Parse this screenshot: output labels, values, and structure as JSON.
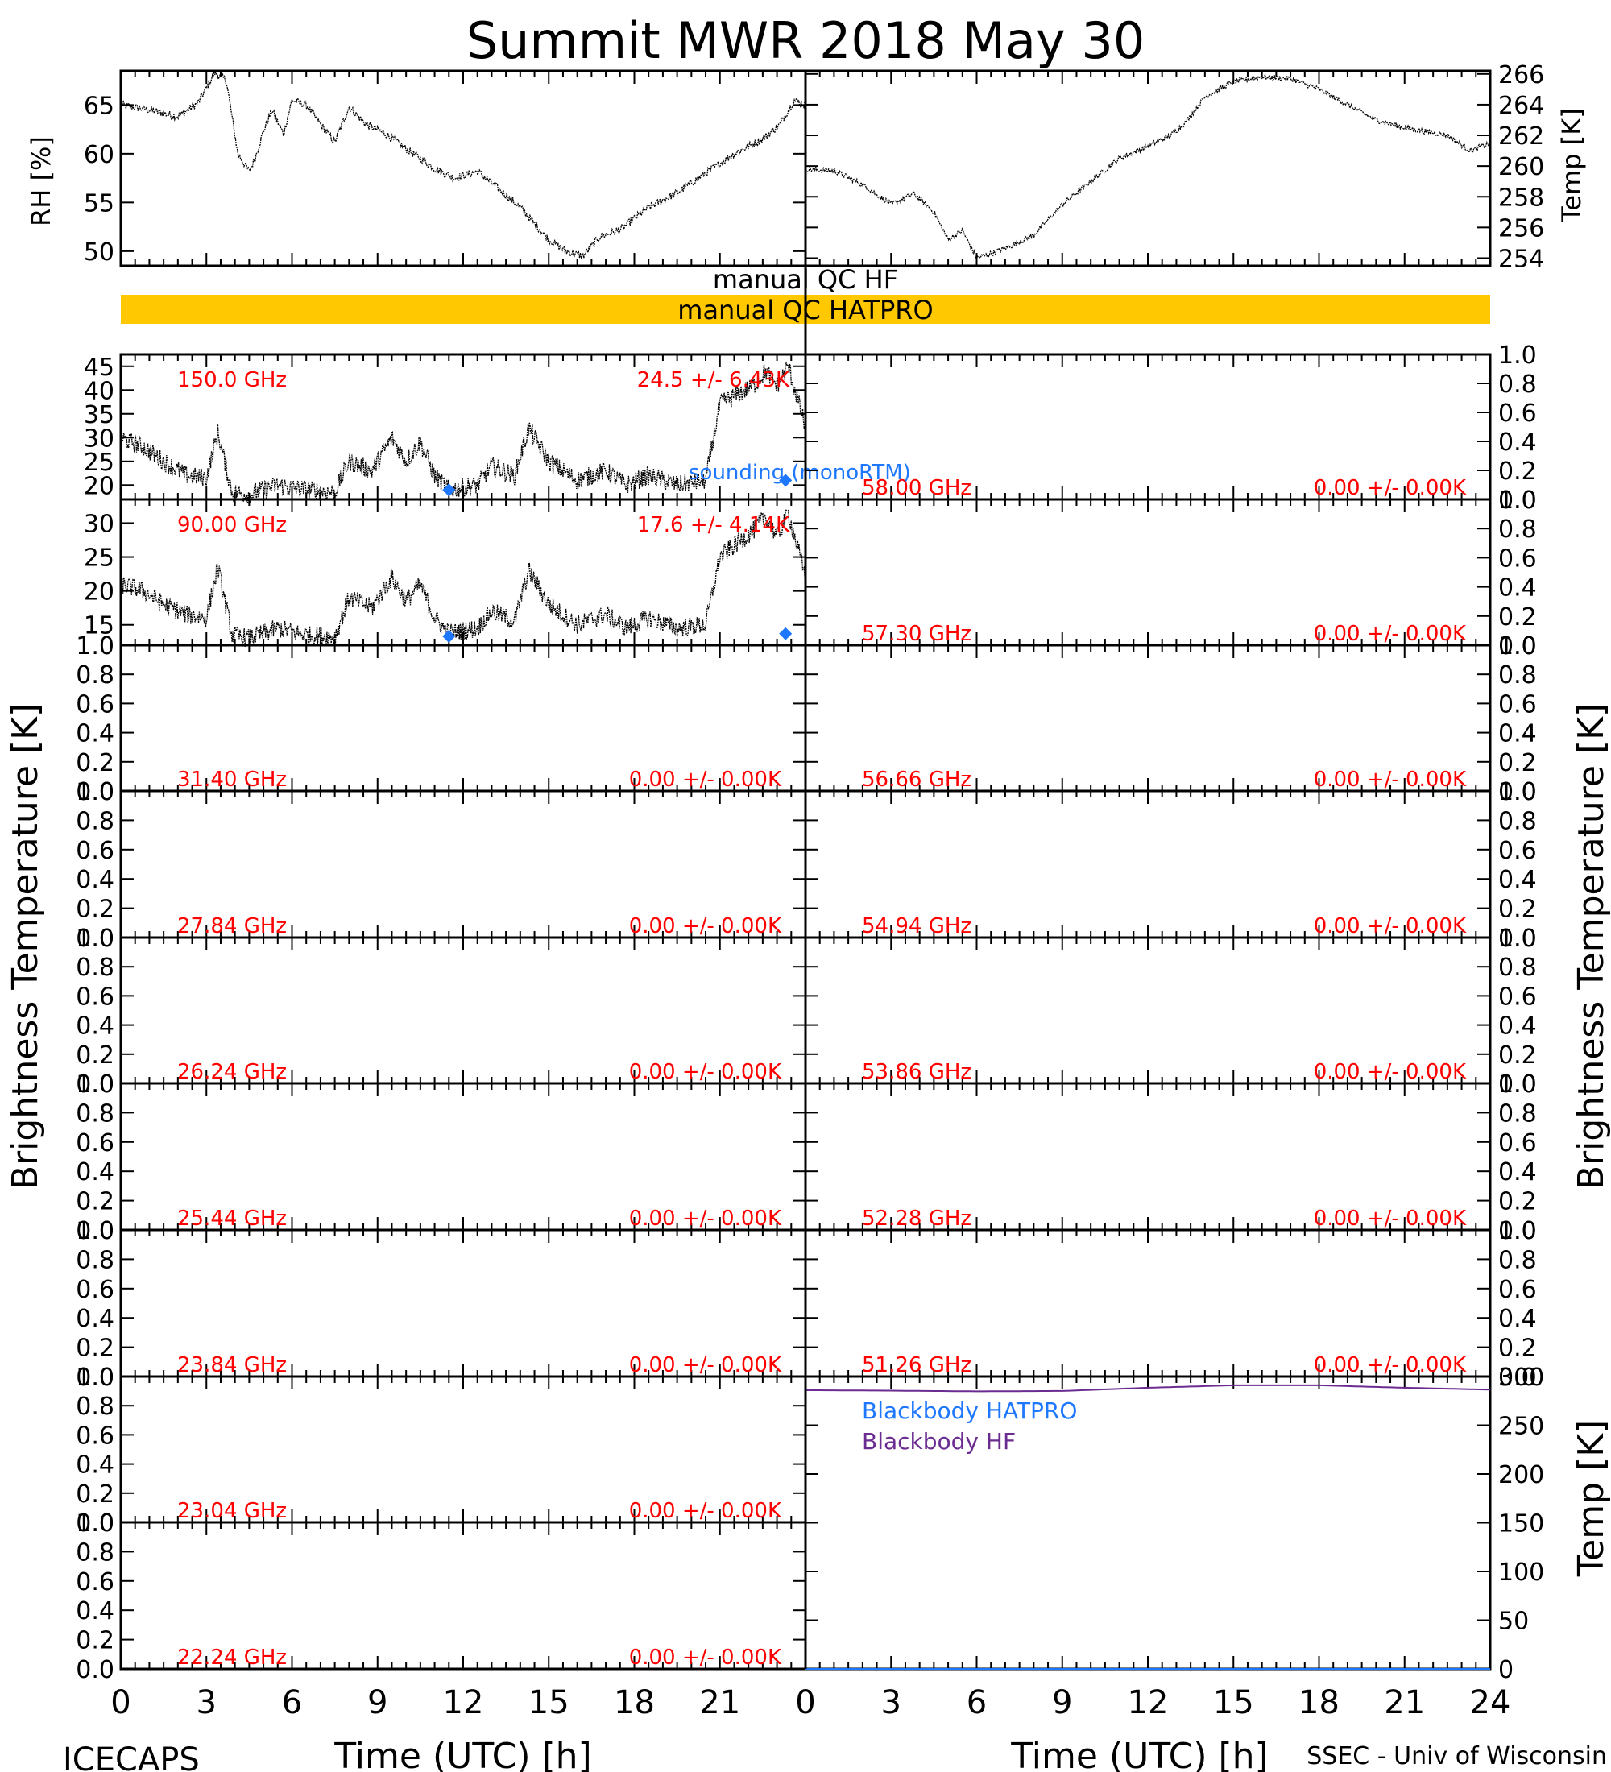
{
  "title": "Summit MWR 2018 May 30",
  "footer": {
    "left": "ICECAPS",
    "right": "SSEC - Univ of Wisconsin"
  },
  "xaxis": {
    "label": "Time (UTC) [h]",
    "ticks": [
      "0",
      "3",
      "6",
      "9",
      "12",
      "15",
      "18",
      "21",
      "24"
    ],
    "left_ticks": [
      "0",
      "3",
      "6",
      "9",
      "12",
      "15",
      "18",
      "21"
    ]
  },
  "ylabels": {
    "rh": "RH [%]",
    "temp_top": "Temp [K]",
    "tb_left": "Brightness Temperature [K]",
    "tb_right": "Brightness Temperature [K]",
    "temp_bb": "Temp [K]"
  },
  "qc": {
    "hf_label": "manual QC HF",
    "hatpro_label": "manual QC HATPRO",
    "hatpro_color": "#FFC800"
  },
  "colors": {
    "annotation": "#FF0000",
    "sounding": "#1E78FF",
    "blackbody_hf": "#6B2C91",
    "trace": "#000000"
  },
  "legend": {
    "sounding": "sounding (monoRTM)",
    "bb_hatpro": "Blackbody HATPRO",
    "bb_hf": "Blackbody HF"
  },
  "chart_data": [
    {
      "type": "line",
      "name": "rh",
      "ylim": [
        48.5,
        68.5
      ],
      "yticks": [
        "50",
        "55",
        "60",
        "65"
      ],
      "xlim": [
        0,
        24
      ],
      "series": [
        {
          "x": [
            0,
            1,
            2,
            2.7,
            3.3,
            3.7,
            4.1,
            4.5,
            4.7,
            5.0,
            5.3,
            5.7,
            6.0,
            6.5,
            7.0,
            7.5,
            8.0,
            8.6,
            9.3,
            10.0,
            11.0,
            11.7,
            12.5,
            13.0,
            14.0,
            15.0,
            15.6,
            16.2,
            16.8,
            17.5,
            18.5,
            19.5,
            20.5,
            21.5,
            22.5,
            23.1,
            23.6,
            24.0
          ],
          "y": [
            65.0,
            64.5,
            63.8,
            65.2,
            68.3,
            67.5,
            60.0,
            58.2,
            59.5,
            62.3,
            64.5,
            62.0,
            65.5,
            65.0,
            63.0,
            61.2,
            64.8,
            63.0,
            62.0,
            60.5,
            58.5,
            57.5,
            58.2,
            57.0,
            54.5,
            51.2,
            50.0,
            49.5,
            51.5,
            52.2,
            54.5,
            56.0,
            58.0,
            60.0,
            61.5,
            63.0,
            65.5,
            65.0
          ]
        }
      ]
    },
    {
      "type": "line",
      "name": "air-temp",
      "ylim": [
        253.5,
        266.2
      ],
      "yticks": [
        "254",
        "256",
        "258",
        "260",
        "262",
        "264",
        "266"
      ],
      "xlim": [
        0,
        24
      ],
      "series": [
        {
          "x": [
            0,
            1,
            2,
            3,
            3.8,
            4.5,
            5.0,
            5.5,
            6.0,
            6.5,
            7.2,
            8.0,
            9.0,
            10.0,
            11.0,
            12.0,
            12.8,
            13.3,
            14.0,
            15.0,
            16.0,
            17.0,
            18.0,
            19.0,
            20.0,
            21.0,
            22.5,
            23.3,
            24.0
          ],
          "y": [
            259.8,
            259.7,
            258.8,
            257.5,
            258.2,
            257.0,
            255.2,
            255.8,
            254.0,
            254.3,
            254.8,
            255.5,
            257.5,
            259.0,
            260.5,
            261.3,
            262.0,
            262.8,
            264.5,
            265.5,
            265.8,
            265.7,
            265.0,
            264.0,
            263.0,
            262.5,
            262.0,
            261.0,
            261.5
          ]
        }
      ]
    },
    {
      "type": "line",
      "name": "tb-150",
      "label": "150.0 GHz",
      "stats": "24.5 +/- 6.43K",
      "ylim": [
        17,
        47.5
      ],
      "yticks": [
        "20",
        "25",
        "30",
        "35",
        "40",
        "45"
      ],
      "xlim": [
        0,
        24
      ],
      "series": [
        {
          "x": [
            0,
            0.8,
            1.5,
            2.3,
            3.0,
            3.4,
            3.9,
            4.5,
            5.5,
            6.5,
            7.5,
            8.0,
            8.8,
            9.5,
            10.0,
            10.5,
            11.0,
            11.5,
            12.5,
            13.0,
            13.8,
            14.3,
            15.0,
            16.0,
            17.0,
            17.7,
            18.5,
            19.5,
            20.5,
            21.0,
            21.6,
            22.2,
            22.6,
            23.0,
            23.4,
            24.0
          ],
          "y": [
            30.0,
            28.0,
            25.0,
            22.0,
            21.5,
            31.0,
            18.5,
            18.0,
            20.0,
            19.0,
            18.5,
            25.0,
            23.0,
            30.0,
            25.0,
            29.0,
            22.0,
            19.0,
            20.0,
            24.0,
            22.0,
            32.0,
            25.0,
            21.0,
            23.0,
            20.0,
            22.0,
            20.0,
            21.0,
            37.0,
            39.0,
            41.0,
            44.0,
            41.0,
            45.0,
            32.0
          ]
        }
      ],
      "sounding": [
        {
          "x": 11.5,
          "y": 19.0
        },
        {
          "x": 23.3,
          "y": 21.0
        }
      ]
    },
    {
      "type": "line",
      "name": "tb-90",
      "label": "90.00 GHz",
      "stats": "17.6 +/- 4.14K",
      "ylim": [
        12,
        33.5
      ],
      "yticks": [
        "15",
        "20",
        "25",
        "30"
      ],
      "xlim": [
        0,
        24
      ],
      "series": [
        {
          "x": [
            0,
            0.8,
            1.5,
            2.3,
            3.0,
            3.4,
            3.9,
            4.5,
            5.5,
            6.5,
            7.5,
            8.0,
            8.8,
            9.5,
            10.0,
            10.5,
            11.0,
            11.5,
            12.5,
            13.0,
            13.8,
            14.3,
            15.0,
            16.0,
            17.0,
            17.7,
            18.5,
            19.5,
            20.5,
            21.0,
            21.6,
            22.2,
            22.6,
            23.0,
            23.4,
            24.0
          ],
          "y": [
            21.0,
            20.0,
            18.0,
            16.5,
            16.0,
            23.5,
            13.5,
            13.0,
            14.5,
            13.5,
            13.2,
            19.0,
            17.5,
            22.0,
            18.5,
            21.0,
            16.0,
            13.8,
            14.5,
            17.0,
            15.5,
            23.0,
            18.0,
            15.0,
            16.5,
            14.5,
            16.0,
            14.5,
            15.0,
            25.0,
            27.0,
            29.0,
            31.0,
            28.0,
            31.5,
            22.0
          ]
        }
      ],
      "sounding": [
        {
          "x": 11.5,
          "y": 13.3
        },
        {
          "x": 23.3,
          "y": 13.7
        }
      ]
    },
    {
      "type": "line",
      "name": "tb-grid",
      "ylim": [
        0,
        1.0
      ],
      "yticks": [
        "0.0",
        "0.2",
        "0.4",
        "0.6",
        "0.8",
        "1.0"
      ],
      "xlim": [
        0,
        24
      ],
      "panels": [
        {
          "label": "58.00 GHz",
          "stats": "0.00 +/- 0.00K"
        },
        {
          "label": "57.30 GHz",
          "stats": "0.00 +/- 0.00K"
        },
        {
          "label": "31.40 GHz",
          "stats": "0.00 +/- 0.00K"
        },
        {
          "label": "56.66 GHz",
          "stats": "0.00 +/- 0.00K"
        },
        {
          "label": "27.84 GHz",
          "stats": "0.00 +/- 0.00K"
        },
        {
          "label": "54.94 GHz",
          "stats": "0.00 +/- 0.00K"
        },
        {
          "label": "26.24 GHz",
          "stats": "0.00 +/- 0.00K"
        },
        {
          "label": "53.86 GHz",
          "stats": "0.00 +/- 0.00K"
        },
        {
          "label": "25.44 GHz",
          "stats": "0.00 +/- 0.00K"
        },
        {
          "label": "52.28 GHz",
          "stats": "0.00 +/- 0.00K"
        },
        {
          "label": "23.84 GHz",
          "stats": "0.00 +/- 0.00K"
        },
        {
          "label": "51.26 GHz",
          "stats": "0.00 +/- 0.00K"
        },
        {
          "label": "23.04 GHz",
          "stats": "0.00 +/- 0.00K"
        },
        {
          "label": "22.24 GHz",
          "stats": "0.00 +/- 0.00K"
        }
      ]
    },
    {
      "type": "line",
      "name": "blackbody",
      "ylim": [
        0,
        300
      ],
      "yticks": [
        "0",
        "50",
        "100",
        "150",
        "200",
        "250",
        "300"
      ],
      "xlim": [
        0,
        24
      ],
      "series": [
        {
          "name": "Blackbody HATPRO",
          "x": [
            0,
            24
          ],
          "y": [
            0,
            0
          ]
        },
        {
          "name": "Blackbody HF",
          "x": [
            0,
            3,
            6,
            9,
            12,
            15,
            18,
            21,
            24
          ],
          "y": [
            286.0,
            285.5,
            284.8,
            285.2,
            288.5,
            291.0,
            291.0,
            288.5,
            286.5
          ]
        }
      ]
    }
  ]
}
